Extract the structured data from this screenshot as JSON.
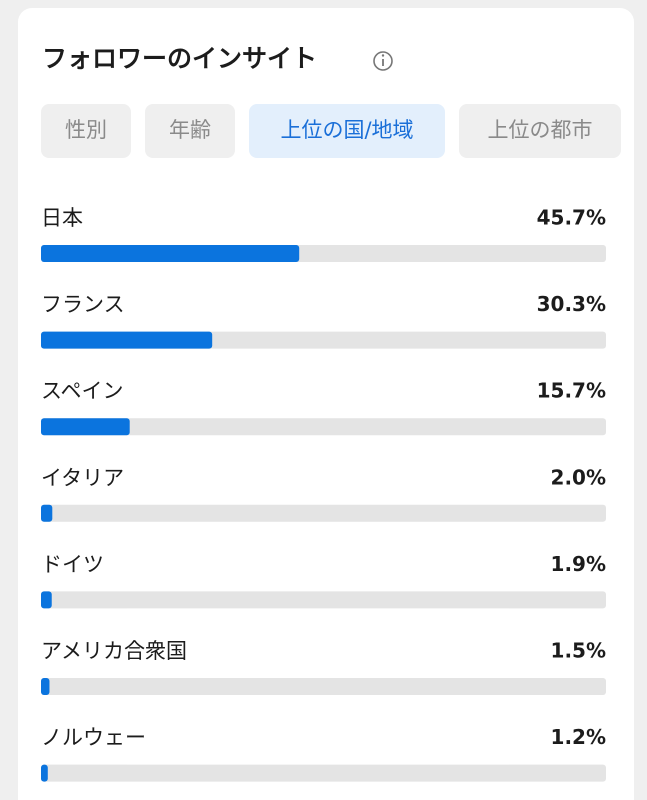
{
  "header": {
    "title": "フォロワーのインサイト"
  },
  "tabs": [
    "性別",
    "年齢",
    "上位の国/地域",
    "上位の都市"
  ],
  "chart_data": {
    "type": "bar",
    "orientation": "horizontal",
    "categories": [
      "日本",
      "フランス",
      "スペイン",
      "イタリア",
      "ドイツ",
      "アメリカ合衆国",
      "ノルウェー"
    ],
    "values": [
      45.7,
      30.3,
      15.7,
      2.0,
      1.9,
      1.5,
      1.2
    ],
    "value_labels": [
      "45.7%",
      "30.3%",
      "15.7%",
      "2.0%",
      "1.9%",
      "1.5%",
      "1.2%"
    ],
    "xlim": [
      0,
      100
    ],
    "color": "#0b74de",
    "track_color": "#e4e4e4"
  }
}
